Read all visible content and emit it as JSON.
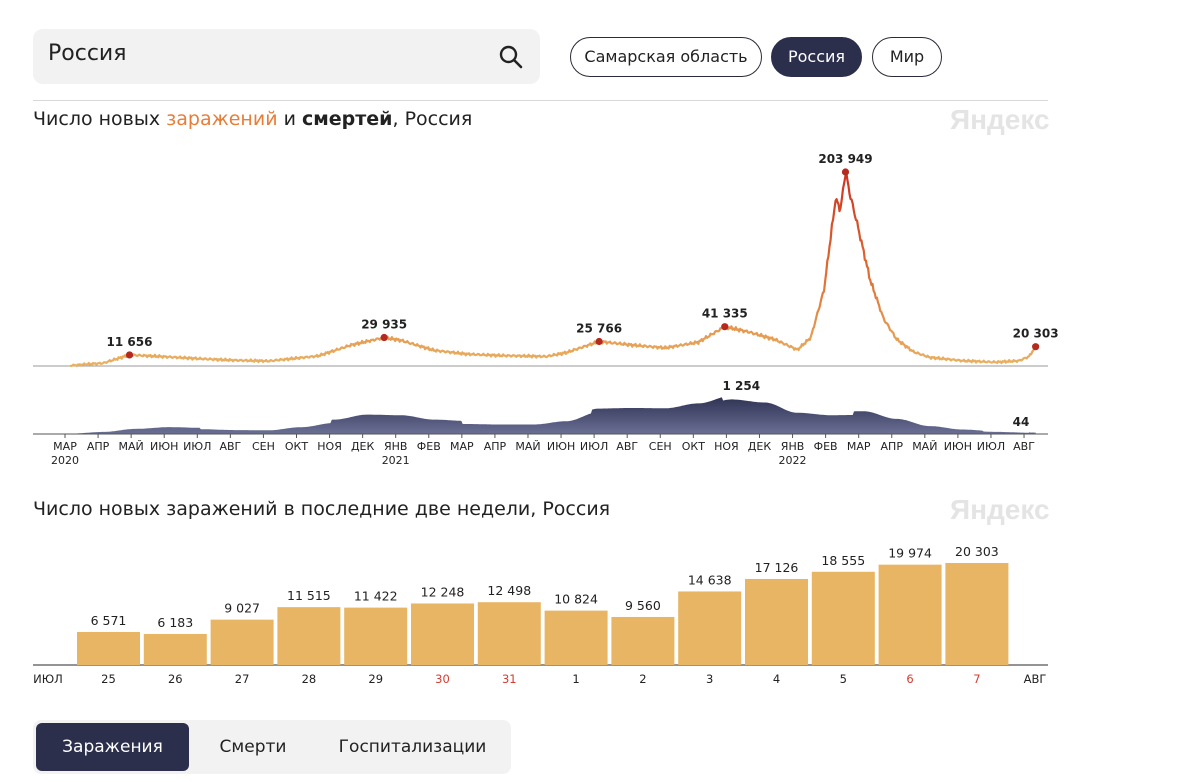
{
  "search": {
    "value": "Россия"
  },
  "region_pills": [
    {
      "label": "Самарская область",
      "active": false
    },
    {
      "label": "Россия",
      "active": true
    },
    {
      "label": "Мир",
      "active": false
    }
  ],
  "watermark": "Яндекс",
  "chart1_title": {
    "prefix": "Число новых ",
    "infections": "заражений",
    "and": " и ",
    "deaths": "смертей",
    "suffix": ", Россия"
  },
  "chart2_title": "Число новых заражений в последние две недели, Россия",
  "tabs": [
    {
      "label": "Заражения",
      "active": true
    },
    {
      "label": "Смерти",
      "active": false
    },
    {
      "label": "Госпитализации",
      "active": false
    }
  ],
  "colors": {
    "infections_line": "#e8b262",
    "infections_peak": "#cc3322",
    "deaths_area": "#3f4466",
    "bar": "#e8b564",
    "weekend": "#d63b2f",
    "dark": "#2b2f4c"
  },
  "chart_data": [
    {
      "type": "line",
      "title": "Число новых заражений и смертей, Россия",
      "series_name": "Заражения",
      "months": [
        "МАР",
        "АПР",
        "МАЙ",
        "ИЮН",
        "ИЮЛ",
        "АВГ",
        "СЕН",
        "ОКТ",
        "НОЯ",
        "ДЕК",
        "ЯНВ",
        "ФЕВ",
        "МАР",
        "АПР",
        "МАЙ",
        "ИЮН",
        "ИЮЛ",
        "АВГ",
        "СЕН",
        "ОКТ",
        "НОЯ",
        "ДЕК",
        "ЯНВ",
        "ФЕВ",
        "МАР",
        "АПР",
        "МАЙ",
        "ИЮН",
        "ИЮЛ",
        "АВГ"
      ],
      "years": [
        {
          "label": "2020",
          "month_index": 0
        },
        {
          "label": "2021",
          "month_index": 10
        },
        {
          "label": "2022",
          "month_index": 22
        }
      ],
      "x": [
        0,
        1.0,
        1.8,
        3,
        4,
        5,
        6,
        7.5,
        8.5,
        9.5,
        10,
        11,
        12,
        13,
        14.4,
        15,
        16,
        17,
        18,
        19,
        19.8,
        20.5,
        21.3,
        22,
        22.4,
        22.8,
        23,
        23.15,
        23.3,
        23.45,
        23.6,
        23.8,
        24.2,
        24.6,
        25,
        25.5,
        26,
        27,
        28,
        28.7,
        29,
        29.2
      ],
      "values": [
        500,
        3000,
        11656,
        9500,
        7500,
        6000,
        5200,
        10500,
        22000,
        29935,
        27000,
        16500,
        12500,
        11000,
        10000,
        14000,
        25766,
        22000,
        19000,
        25000,
        41335,
        36000,
        28000,
        17000,
        30000,
        80000,
        135000,
        175000,
        165000,
        203949,
        178000,
        150000,
        90000,
        50000,
        28000,
        15000,
        9000,
        5500,
        4000,
        5500,
        10000,
        20303
      ],
      "point_labels": [
        {
          "x": 1.8,
          "value": 11656,
          "label": "11 656"
        },
        {
          "x": 9.5,
          "value": 29935,
          "label": "29 935"
        },
        {
          "x": 16,
          "value": 25766,
          "label": "25 766"
        },
        {
          "x": 19.8,
          "value": 41335,
          "label": "41 335"
        },
        {
          "x": 23.45,
          "value": 203949,
          "label": "203 949"
        },
        {
          "x": 29.2,
          "value": 20303,
          "label": "20 303"
        }
      ],
      "deaths": {
        "name": "Смерти",
        "x": [
          0,
          1,
          2,
          3,
          4,
          5,
          6,
          7,
          8,
          9,
          10,
          11,
          12,
          13,
          14,
          15,
          16,
          17,
          18,
          19,
          20,
          21,
          22,
          23,
          24,
          25,
          26,
          27,
          28,
          29,
          29.2
        ],
        "values": [
          10,
          60,
          150,
          200,
          180,
          150,
          140,
          260,
          420,
          580,
          560,
          420,
          380,
          360,
          360,
          480,
          780,
          800,
          790,
          950,
          1200,
          1100,
          760,
          680,
          690,
          440,
          230,
          130,
          80,
          50,
          44
        ],
        "labels": [
          {
            "x": 20.3,
            "value": 1254,
            "label": "1 254"
          },
          {
            "x": 29.2,
            "value": 44,
            "label": "44"
          }
        ]
      }
    },
    {
      "type": "bar",
      "title": "Число новых заражений в последние две недели, Россия",
      "categories": [
        "25",
        "26",
        "27",
        "28",
        "29",
        "30",
        "31",
        "1",
        "2",
        "3",
        "4",
        "5",
        "6",
        "7"
      ],
      "values": [
        6571,
        6183,
        9027,
        11515,
        11422,
        12248,
        12498,
        10824,
        9560,
        14638,
        17126,
        18555,
        19974,
        20303
      ],
      "value_labels": [
        "6 571",
        "6 183",
        "9 027",
        "11 515",
        "11 422",
        "12 248",
        "12 498",
        "10 824",
        "9 560",
        "14 638",
        "17 126",
        "18 555",
        "19 974",
        "20 303"
      ],
      "weekend": [
        false,
        false,
        false,
        false,
        false,
        true,
        true,
        false,
        false,
        false,
        false,
        false,
        true,
        true
      ],
      "month_start": "ИЮЛ",
      "month_end": "АВГ",
      "ylim": [
        0,
        20303
      ]
    }
  ]
}
